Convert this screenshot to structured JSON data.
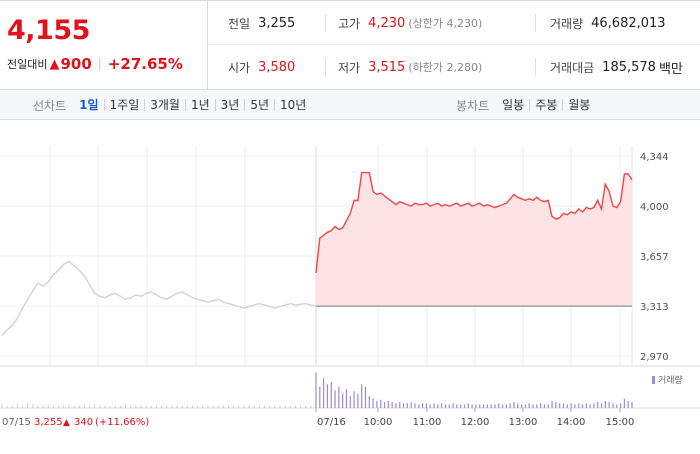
{
  "quote": {
    "price": "4,155",
    "change_label": "전일대비",
    "change_value": "900",
    "change_pct": "+27.65%"
  },
  "stats": {
    "prev_close_label": "전일",
    "prev_close": "3,255",
    "high_label": "고가",
    "high": "4,230",
    "upper_limit_label": "(상한가 4,230)",
    "volume_label": "거래량",
    "volume": "46,682,013",
    "open_label": "시가",
    "open": "3,580",
    "low_label": "저가",
    "low": "3,515",
    "lower_limit_label": "(하한가 2,280)",
    "amount_label": "거래대금",
    "amount": "185,578",
    "amount_unit": "백만"
  },
  "line_tabs": {
    "label": "선차트",
    "items": [
      "1일",
      "1주일",
      "3개월",
      "1년",
      "3년",
      "5년",
      "10년"
    ],
    "active_index": 0
  },
  "candle_tabs": {
    "label": "봉차트",
    "items": [
      "일봉",
      "주봉",
      "월봉"
    ]
  },
  "chart_data": {
    "type": "line",
    "y_ticks": [
      "4,344",
      "4,000",
      "3,657",
      "3,313",
      "2,970"
    ],
    "ylim": [
      2970,
      4344
    ],
    "prev_close_line": 3313,
    "x_ticks": [
      "07/16",
      "10:00",
      "11:00",
      "12:00",
      "13:00",
      "14:00",
      "15:00"
    ],
    "prev_day_label": "07/15",
    "prev_day_close": "3,255",
    "prev_day_change": "340",
    "prev_day_change_pct": "(+11.66%)",
    "volume_legend": "거래량",
    "prev_day_series": [
      3110,
      3150,
      3180,
      3230,
      3300,
      3360,
      3420,
      3470,
      3450,
      3480,
      3530,
      3560,
      3600,
      3620,
      3590,
      3560,
      3520,
      3460,
      3400,
      3380,
      3370,
      3390,
      3400,
      3380,
      3360,
      3370,
      3390,
      3380,
      3400,
      3410,
      3390,
      3370,
      3360,
      3380,
      3400,
      3410,
      3390,
      3370,
      3360,
      3350,
      3340,
      3350,
      3360,
      3340,
      3330,
      3320,
      3310,
      3300,
      3310,
      3320,
      3330,
      3320,
      3310,
      3300,
      3310,
      3320,
      3330,
      3320,
      3325,
      3330,
      3320,
      3315
    ],
    "today_series": [
      3540,
      3780,
      3800,
      3820,
      3830,
      3860,
      3840,
      3850,
      3900,
      3950,
      4040,
      4040,
      4230,
      4230,
      4230,
      4100,
      4080,
      4090,
      4070,
      4050,
      4030,
      4010,
      4030,
      4020,
      4010,
      4000,
      4020,
      4010,
      4010,
      4020,
      4000,
      4010,
      4020,
      4000,
      4010,
      4000,
      4010,
      4020,
      4000,
      4010,
      4020,
      4000,
      4010,
      4020,
      4000,
      4010,
      4000,
      3990,
      4000,
      4010,
      4020,
      4050,
      4080,
      4060,
      4050,
      4040,
      4050,
      4040,
      4060,
      4040,
      4030,
      4040,
      3930,
      3910,
      3920,
      3950,
      3940,
      3960,
      3950,
      3980,
      3960,
      3990,
      3980,
      3990,
      4040,
      3980,
      4150,
      4100,
      4000,
      3990,
      4030,
      4220,
      4220,
      4180
    ],
    "prev_day_volume": [
      3,
      2,
      2,
      3,
      2,
      4,
      3,
      2,
      2,
      3,
      2,
      2,
      2,
      3,
      2,
      2,
      2,
      2,
      3,
      2,
      2,
      2,
      2,
      2,
      3,
      2,
      2,
      2,
      2,
      2,
      2,
      2,
      2,
      2,
      2,
      2,
      2,
      2,
      2,
      2,
      2,
      2,
      2,
      2,
      2,
      2,
      2,
      2,
      2,
      2,
      2,
      2,
      2,
      2,
      2,
      2,
      2,
      2,
      2,
      2,
      2,
      2
    ],
    "today_volume": [
      30,
      18,
      25,
      20,
      22,
      15,
      18,
      12,
      16,
      10,
      14,
      12,
      20,
      18,
      10,
      8,
      6,
      7,
      5,
      6,
      5,
      4,
      5,
      4,
      4,
      5,
      4,
      3,
      4,
      4,
      3,
      4,
      3,
      4,
      3,
      3,
      4,
      3,
      3,
      3,
      4,
      3,
      3,
      3,
      3,
      3,
      3,
      3,
      4,
      3,
      3,
      4,
      5,
      4,
      3,
      3,
      4,
      3,
      3,
      4,
      3,
      3,
      6,
      5,
      4,
      4,
      3,
      4,
      3,
      4,
      3,
      4,
      3,
      4,
      5,
      4,
      6,
      5,
      4,
      3,
      4,
      8,
      6,
      5
    ]
  }
}
